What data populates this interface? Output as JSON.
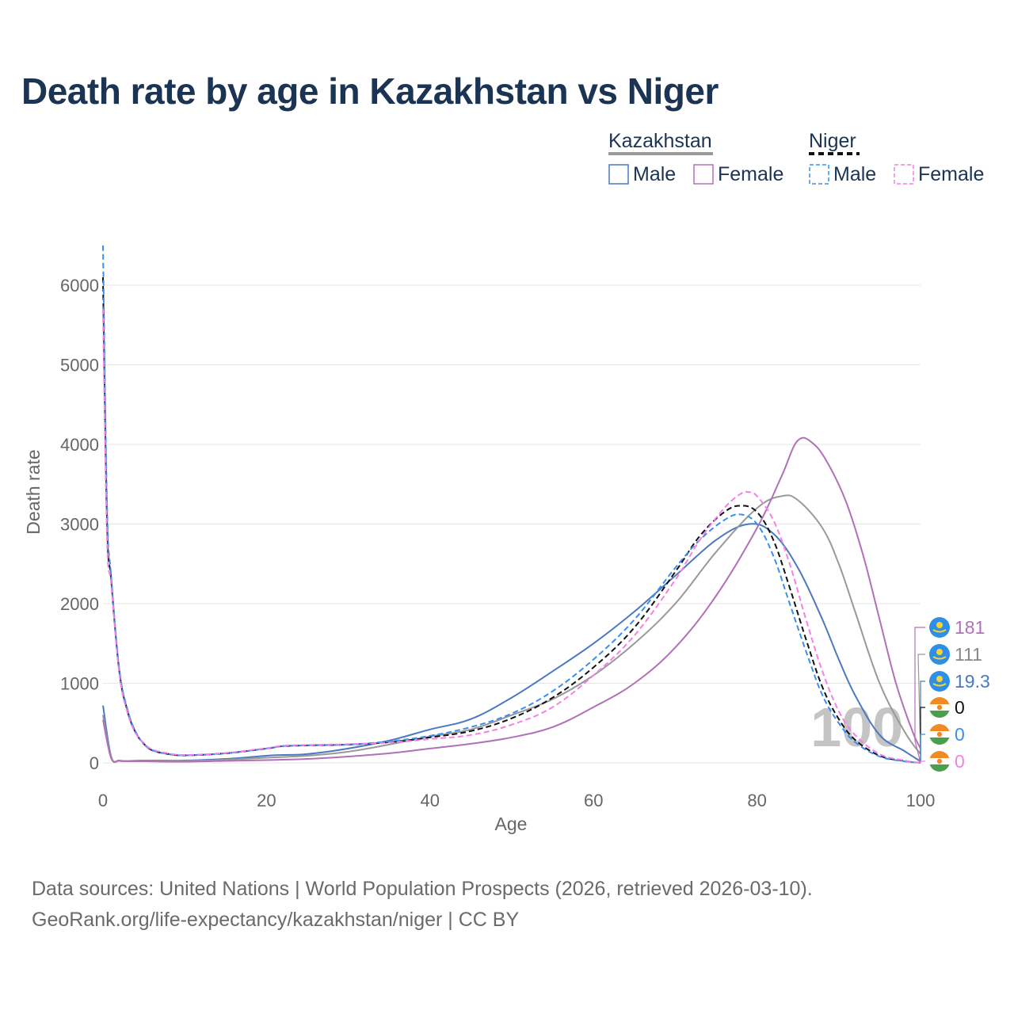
{
  "title": "Death rate by age in Kazakhstan vs Niger",
  "sources": {
    "line1": "Data sources: United Nations | World Population Prospects (2026, retrieved 2026-03-10).",
    "line2": "GeoRank.org/life-expectancy/kazakhstan/niger | CC BY"
  },
  "legend": {
    "groups": [
      {
        "name": "Kazakhstan",
        "style": "solid",
        "color": "#888888",
        "items": [
          {
            "label": "Male",
            "color": "#4a78c2"
          },
          {
            "label": "Female",
            "color": "#b170b8"
          }
        ]
      },
      {
        "name": "Niger",
        "style": "dashed",
        "color": "#111111",
        "items": [
          {
            "label": "Male",
            "color": "#3b8ff0"
          },
          {
            "label": "Female",
            "color": "#f57fe6"
          }
        ]
      }
    ]
  },
  "year_label": "100",
  "end_labels": [
    {
      "text": "181",
      "color": "#b170b8",
      "flag": "kazakhstan-flag"
    },
    {
      "text": "111",
      "color": "#888888",
      "flag": "kazakhstan-flag"
    },
    {
      "text": "19.3",
      "color": "#4a78c2",
      "flag": "kazakhstan-flag"
    },
    {
      "text": "0",
      "color": "#111111",
      "flag": "niger-flag"
    },
    {
      "text": "0",
      "color": "#3b8ff0",
      "flag": "niger-flag"
    },
    {
      "text": "0",
      "color": "#f57fe6",
      "flag": "niger-flag"
    }
  ],
  "chart_data": {
    "type": "line",
    "title": "Death rate by age in Kazakhstan vs Niger",
    "xlabel": "Age",
    "ylabel": "Death rate",
    "xlim": [
      0,
      100
    ],
    "ylim": [
      0,
      6500
    ],
    "xticks": [
      0,
      20,
      40,
      60,
      80,
      100
    ],
    "yticks": [
      0,
      1000,
      2000,
      3000,
      4000,
      5000,
      6000
    ],
    "grid": true,
    "series": [
      {
        "name": "Kazakhstan Male",
        "color": "#4a78c2",
        "dash": false,
        "x": [
          0,
          1,
          2,
          3,
          5,
          10,
          15,
          20,
          22,
          25,
          30,
          35,
          40,
          45,
          50,
          55,
          60,
          65,
          70,
          75,
          79,
          82,
          85,
          88,
          90,
          92,
          95,
          98,
          100
        ],
        "y": [
          720,
          80,
          30,
          25,
          30,
          30,
          50,
          90,
          100,
          110,
          180,
          280,
          420,
          550,
          820,
          1150,
          1500,
          1900,
          2350,
          2800,
          3000,
          2880,
          2450,
          1800,
          1300,
          850,
          350,
          150,
          19
        ]
      },
      {
        "name": "Kazakhstan Both",
        "color": "#999999",
        "dash": false,
        "x": [
          0,
          1,
          2,
          3,
          5,
          10,
          15,
          20,
          25,
          30,
          35,
          40,
          45,
          50,
          55,
          60,
          65,
          70,
          75,
          80,
          83,
          85,
          88,
          90,
          92,
          95,
          98,
          100
        ],
        "y": [
          600,
          70,
          30,
          25,
          28,
          25,
          40,
          65,
          90,
          140,
          230,
          330,
          420,
          600,
          800,
          1100,
          1500,
          2000,
          2650,
          3200,
          3350,
          3300,
          2950,
          2500,
          1900,
          1000,
          400,
          111
        ]
      },
      {
        "name": "Kazakhstan Female",
        "color": "#b170b8",
        "dash": false,
        "x": [
          0,
          1,
          2,
          3,
          5,
          10,
          15,
          20,
          25,
          30,
          35,
          40,
          45,
          50,
          55,
          60,
          65,
          70,
          75,
          80,
          83,
          85,
          87,
          89,
          91,
          93,
          95,
          97,
          99,
          100
        ],
        "y": [
          540,
          60,
          25,
          20,
          20,
          15,
          25,
          35,
          50,
          80,
          120,
          180,
          240,
          320,
          450,
          700,
          1000,
          1450,
          2100,
          2950,
          3600,
          4050,
          4000,
          3700,
          3250,
          2600,
          1800,
          1000,
          400,
          181
        ]
      },
      {
        "name": "Niger Both",
        "color": "#111111",
        "dash": true,
        "x": [
          0,
          0.5,
          1,
          2,
          3,
          4,
          5,
          6,
          8,
          10,
          15,
          20,
          22,
          25,
          30,
          35,
          40,
          45,
          50,
          55,
          60,
          65,
          70,
          73,
          76,
          78,
          80,
          82,
          84,
          86,
          88,
          90,
          92,
          95,
          98,
          100
        ],
        "y": [
          6100,
          3000,
          2300,
          1150,
          650,
          380,
          240,
          160,
          110,
          95,
          120,
          180,
          210,
          220,
          230,
          260,
          320,
          400,
          560,
          820,
          1200,
          1700,
          2400,
          2850,
          3150,
          3230,
          3150,
          2800,
          2200,
          1550,
          950,
          550,
          290,
          90,
          25,
          0
        ]
      },
      {
        "name": "Niger Male",
        "color": "#3b8ff0",
        "dash": true,
        "x": [
          0,
          0.5,
          1,
          2,
          3,
          4,
          5,
          6,
          8,
          10,
          15,
          20,
          22,
          25,
          30,
          35,
          40,
          45,
          50,
          55,
          60,
          65,
          70,
          73,
          76,
          78,
          80,
          82,
          84,
          86,
          88,
          90,
          92,
          95,
          98,
          100
        ],
        "y": [
          6500,
          3200,
          2350,
          1180,
          670,
          390,
          240,
          160,
          110,
          95,
          120,
          180,
          210,
          220,
          230,
          270,
          340,
          450,
          620,
          900,
          1300,
          1800,
          2450,
          2800,
          3050,
          3120,
          3000,
          2600,
          2000,
          1400,
          850,
          500,
          260,
          80,
          20,
          0
        ]
      },
      {
        "name": "Niger Female",
        "color": "#f57fe6",
        "dash": true,
        "x": [
          0,
          0.5,
          1,
          2,
          3,
          4,
          5,
          6,
          8,
          10,
          15,
          20,
          22,
          25,
          30,
          35,
          40,
          45,
          50,
          55,
          60,
          65,
          70,
          73,
          76,
          78,
          79,
          80,
          82,
          84,
          86,
          88,
          90,
          92,
          95,
          98,
          100
        ],
        "y": [
          5700,
          2800,
          2250,
          1120,
          630,
          370,
          250,
          170,
          120,
          100,
          125,
          185,
          215,
          225,
          235,
          255,
          300,
          350,
          480,
          700,
          1100,
          1600,
          2300,
          2800,
          3200,
          3380,
          3400,
          3350,
          3050,
          2500,
          1800,
          1150,
          650,
          350,
          110,
          30,
          0
        ]
      }
    ]
  }
}
